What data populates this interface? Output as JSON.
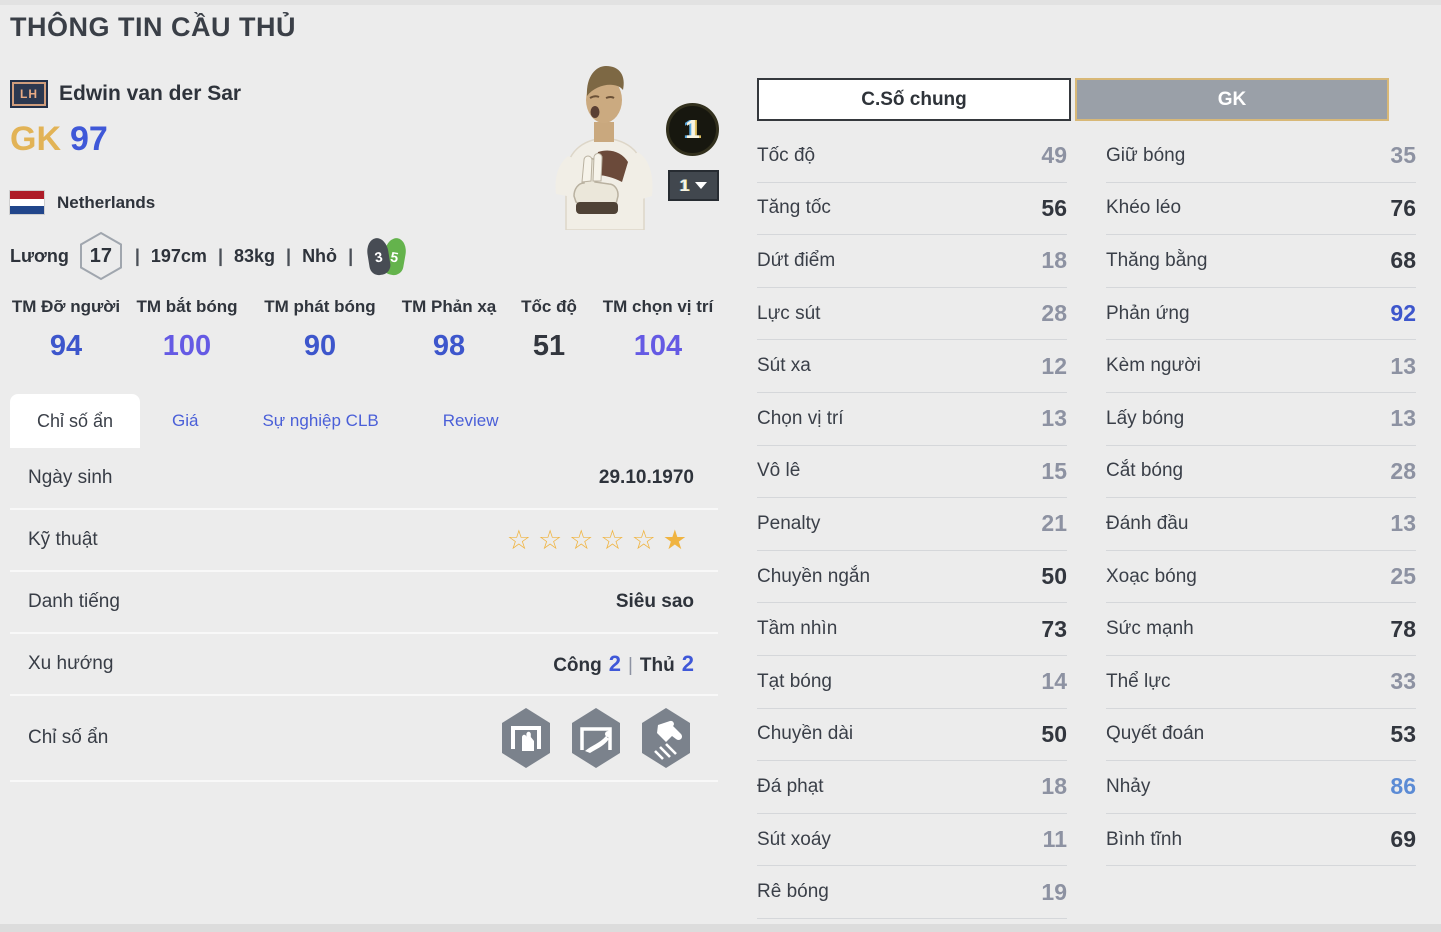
{
  "page": {
    "title": "THÔNG TIN CẦU THỦ"
  },
  "player": {
    "position_badge": "LH",
    "name": "Edwin van der Sar",
    "position": "GK",
    "ovr": "97",
    "nation": "Netherlands",
    "salary_label": "Lương",
    "salary": "17",
    "separator": "|",
    "height": "197cm",
    "weight": "83kg",
    "body_type": "Nhỏ",
    "weak_foot": "3",
    "strong_foot": "5",
    "upgrade_badge": "1",
    "level_dropdown_value": "1"
  },
  "tm_stats": [
    {
      "label": "TM Đỡ người",
      "value": "94",
      "tone": "blue"
    },
    {
      "label": "TM bắt bóng",
      "value": "100",
      "tone": "purple"
    },
    {
      "label": "TM phát bóng",
      "value": "90",
      "tone": "blue"
    },
    {
      "label": "TM Phản xạ",
      "value": "98",
      "tone": "blue"
    },
    {
      "label": "Tốc độ",
      "value": "51",
      "tone": "dark"
    },
    {
      "label": "TM chọn vị trí",
      "value": "104",
      "tone": "purple"
    }
  ],
  "tabs": [
    {
      "id": "chi-so-an",
      "label": "Chỉ số ẩn",
      "active": true
    },
    {
      "id": "gia",
      "label": "Giá",
      "active": false
    },
    {
      "id": "su-nghiep-clb",
      "label": "Sự nghiệp CLB",
      "active": false
    },
    {
      "id": "review",
      "label": "Review",
      "active": false
    }
  ],
  "detail": {
    "birth": {
      "label": "Ngày sinh",
      "value": "29.10.1970"
    },
    "skill": {
      "label": "Kỹ thuật",
      "stars_empty": "☆☆☆☆☆",
      "stars_filled": "★"
    },
    "fame": {
      "label": "Danh tiếng",
      "value": "Siêu sao"
    },
    "trend": {
      "label": "Xu hướng",
      "attack_label": "Công",
      "attack_value": "2",
      "separator": "|",
      "defense_label": "Thủ",
      "defense_value": "2"
    },
    "hidden": {
      "label": "Chỉ số ẩn",
      "icons": [
        "gk-hand-save-icon",
        "gk-goal-dive-icon",
        "gk-punch-glove-icon"
      ]
    }
  },
  "right_panel": {
    "general_tab": "C.Số chung",
    "gk_tab": "GK",
    "general_rows": [
      {
        "label": "Tốc độ",
        "value": "49",
        "tone": "gray"
      },
      {
        "label": "Tăng tốc",
        "value": "56",
        "tone": "dark"
      },
      {
        "label": "Dứt điểm",
        "value": "18",
        "tone": "gray"
      },
      {
        "label": "Lực sút",
        "value": "28",
        "tone": "gray"
      },
      {
        "label": "Sút xa",
        "value": "12",
        "tone": "gray"
      },
      {
        "label": "Chọn vị trí",
        "value": "13",
        "tone": "gray"
      },
      {
        "label": "Vô lê",
        "value": "15",
        "tone": "gray"
      },
      {
        "label": "Penalty",
        "value": "21",
        "tone": "gray"
      },
      {
        "label": "Chuyền ngắn",
        "value": "50",
        "tone": "dark"
      },
      {
        "label": "Tầm nhìn",
        "value": "73",
        "tone": "dark"
      },
      {
        "label": "Tạt bóng",
        "value": "14",
        "tone": "gray"
      },
      {
        "label": "Chuyền dài",
        "value": "50",
        "tone": "dark"
      },
      {
        "label": "Đá phạt",
        "value": "18",
        "tone": "gray"
      },
      {
        "label": "Sút xoáy",
        "value": "11",
        "tone": "gray"
      },
      {
        "label": "Rê bóng",
        "value": "19",
        "tone": "gray"
      }
    ],
    "gk_rows": [
      {
        "label": "Giữ bóng",
        "value": "35",
        "tone": "gray"
      },
      {
        "label": "Khéo léo",
        "value": "76",
        "tone": "dark"
      },
      {
        "label": "Thăng bằng",
        "value": "68",
        "tone": "dark"
      },
      {
        "label": "Phản ứng",
        "value": "92",
        "tone": "blue"
      },
      {
        "label": "Kèm người",
        "value": "13",
        "tone": "gray"
      },
      {
        "label": "Lấy bóng",
        "value": "13",
        "tone": "gray"
      },
      {
        "label": "Cắt bóng",
        "value": "28",
        "tone": "gray"
      },
      {
        "label": "Đánh đầu",
        "value": "13",
        "tone": "gray"
      },
      {
        "label": "Xoạc bóng",
        "value": "25",
        "tone": "gray"
      },
      {
        "label": "Sức mạnh",
        "value": "78",
        "tone": "dark"
      },
      {
        "label": "Thể lực",
        "value": "33",
        "tone": "gray"
      },
      {
        "label": "Quyết đoán",
        "value": "53",
        "tone": "dark"
      },
      {
        "label": "Nhảy",
        "value": "86",
        "tone": "lightblue"
      },
      {
        "label": "Bình tĩnh",
        "value": "69",
        "tone": "dark"
      }
    ]
  },
  "colors": {
    "value_gray": "#8d92a2",
    "value_dark": "#32363e",
    "value_blue": "#3d56cc",
    "value_lightblue": "#5b8bd5",
    "value_purple": "#655ae4",
    "position_gold": "#e2b356",
    "ovr_blue": "#3f58d8",
    "star_gold": "#f0b441",
    "gk_button_border": "#d8b877",
    "strong_foot_green": "#64b34c"
  }
}
